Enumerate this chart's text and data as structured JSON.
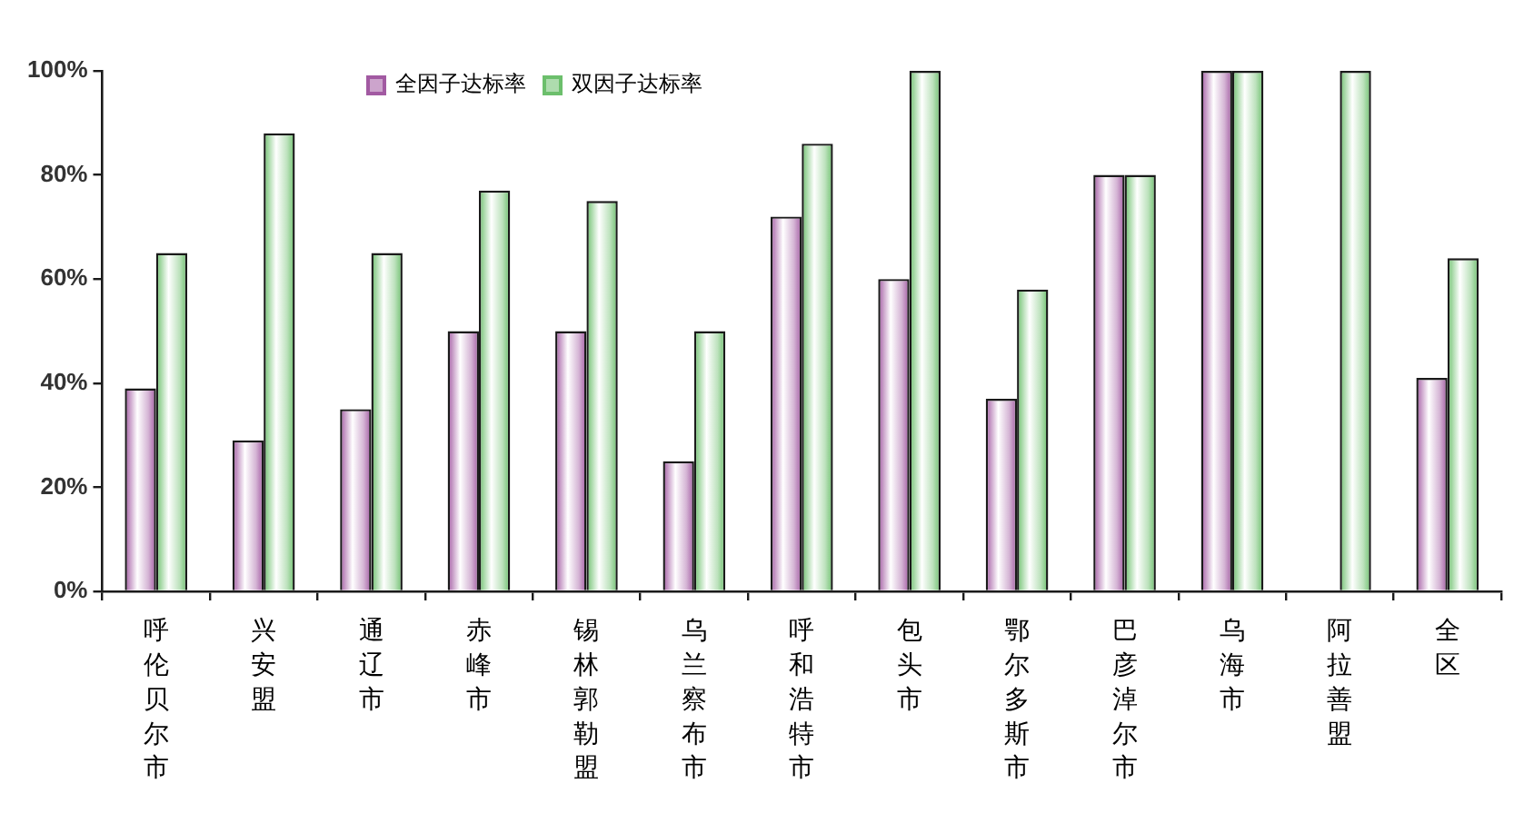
{
  "chart_data": {
    "type": "bar",
    "categories": [
      "呼伦贝尔市",
      "兴安盟",
      "通辽市",
      "赤峰市",
      "锡林郭勒盟",
      "乌兰察布市",
      "呼和浩特市",
      "包头市",
      "鄂尔多斯市",
      "巴彦淖尔市",
      "乌海市",
      "阿拉善盟",
      "全区"
    ],
    "series": [
      {
        "name": "全因子达标率",
        "color": "#a25aa2",
        "values": [
          39,
          29,
          35,
          50,
          50,
          25,
          72,
          60,
          37,
          80,
          100,
          null,
          41
        ]
      },
      {
        "name": "双因子达标率",
        "color": "#6cbf6c",
        "values": [
          65,
          88,
          65,
          77,
          75,
          50,
          86,
          100,
          58,
          80,
          100,
          100,
          64
        ]
      }
    ],
    "ylim": [
      0,
      100
    ],
    "yticks": [
      {
        "value": 0,
        "label": "0%"
      },
      {
        "value": 20,
        "label": "20%"
      },
      {
        "value": 40,
        "label": "40%"
      },
      {
        "value": 60,
        "label": "60%"
      },
      {
        "value": 80,
        "label": "80%"
      },
      {
        "value": 100,
        "label": "100%"
      }
    ],
    "legend": "top"
  }
}
